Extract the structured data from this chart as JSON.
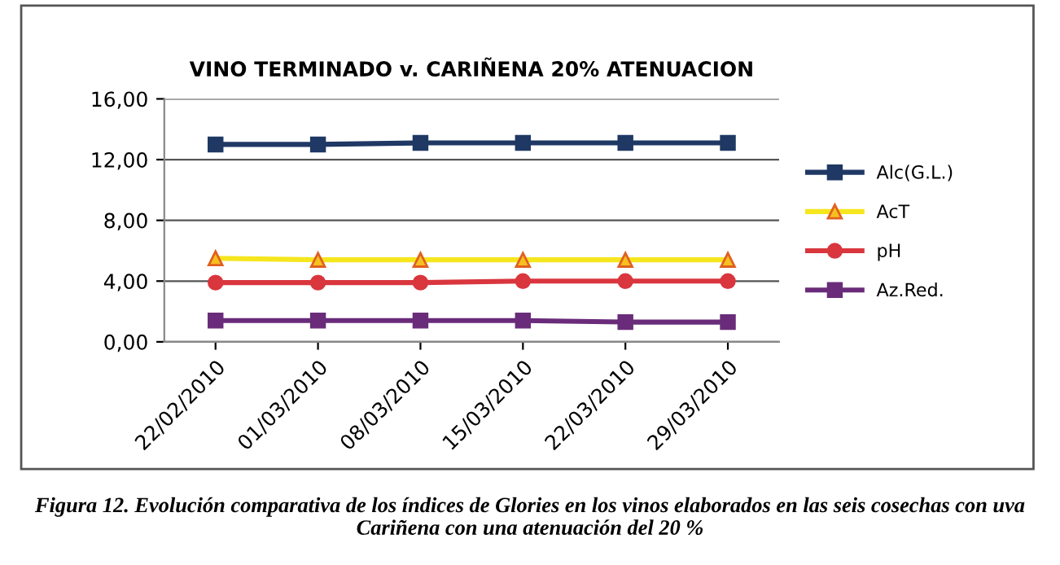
{
  "chart_data": {
    "type": "line",
    "title": "VINO TERMINADO v. CARIÑENA 20% ATENUACION",
    "categories": [
      "22/02/2010",
      "01/03/2010",
      "08/03/2010",
      "15/03/2010",
      "22/03/2010",
      "29/03/2010"
    ],
    "series": [
      {
        "name": "Alc(G.L.)",
        "color": "#1f3864",
        "marker": "square",
        "values": [
          13.0,
          13.0,
          13.1,
          13.1,
          13.1,
          13.1
        ]
      },
      {
        "name": "AcT",
        "color": "#f5e61e",
        "marker": "triangle",
        "values": [
          5.5,
          5.4,
          5.4,
          5.4,
          5.4,
          5.4
        ]
      },
      {
        "name": "pH",
        "color": "#d9363e",
        "marker": "circle",
        "values": [
          3.9,
          3.9,
          3.9,
          4.0,
          4.0,
          4.0
        ]
      },
      {
        "name": "Az.Red.",
        "color": "#6a2c7a",
        "marker": "square",
        "values": [
          1.4,
          1.4,
          1.4,
          1.4,
          1.3,
          1.3
        ]
      }
    ],
    "ylim": [
      0,
      16
    ],
    "yticks": [
      {
        "value": 0,
        "label": "0,00"
      },
      {
        "value": 4,
        "label": "4,00"
      },
      {
        "value": 8,
        "label": "8,00"
      },
      {
        "value": 12,
        "label": "12,00"
      },
      {
        "value": 16,
        "label": "16,00"
      }
    ],
    "grid": "y",
    "legend": "right",
    "annotations": [
      "Figura 12. Evolución comparativa de los índices de Glories en los vinos elaborados en las seis cosechas con uva Cariñena con una atenuación del 20 %"
    ]
  }
}
